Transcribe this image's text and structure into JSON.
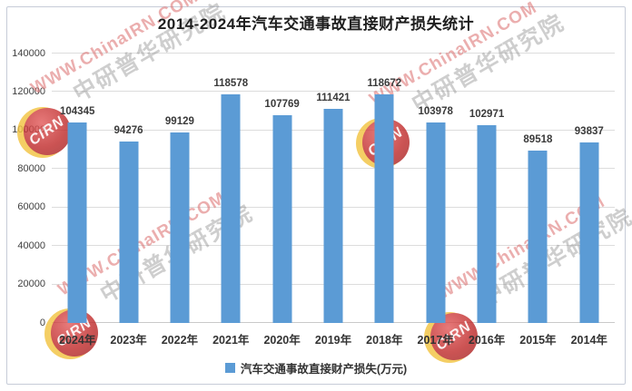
{
  "title": "2014-2024年汽车交通事故直接财产损失统计",
  "legend": {
    "label": "汽车交通事故直接财产损失(万元)"
  },
  "chart_data": {
    "type": "bar",
    "title": "2014-2024年汽车交通事故直接财产损失统计",
    "categories": [
      "2024年",
      "2023年",
      "2022年",
      "2021年",
      "2020年",
      "2019年",
      "2018年",
      "2017年",
      "2016年",
      "2015年",
      "2014年"
    ],
    "values": [
      104345,
      94276,
      99129,
      118578,
      107769,
      111421,
      118672,
      103978,
      102971,
      89518,
      93837
    ],
    "series_name": "汽车交通事故直接财产损失(万元)",
    "xlabel": "",
    "ylabel": "",
    "ylim": [
      0,
      140000
    ],
    "ytick_interval": 20000,
    "yticks": [
      "0",
      "20000",
      "40000",
      "60000",
      "80000",
      "100000",
      "120000",
      "140000"
    ],
    "grid": true,
    "data_labels": true,
    "legend_position": "bottom",
    "bar_color": "#5B9BD5"
  },
  "watermark": {
    "logo_text": "CIRN",
    "url_text": "WWW.ChinaIRN.COM",
    "org_text": "中研普华研究院"
  },
  "colors": {
    "bar": "#5B9BD5",
    "gridline": "#DCDCDC",
    "frame_border": "#C6CCD8",
    "title_text": "#1F1F1F",
    "label_text": "#3A3A3A",
    "watermark_red": "#C02A2A",
    "watermark_yellow": "#F2C23E"
  }
}
